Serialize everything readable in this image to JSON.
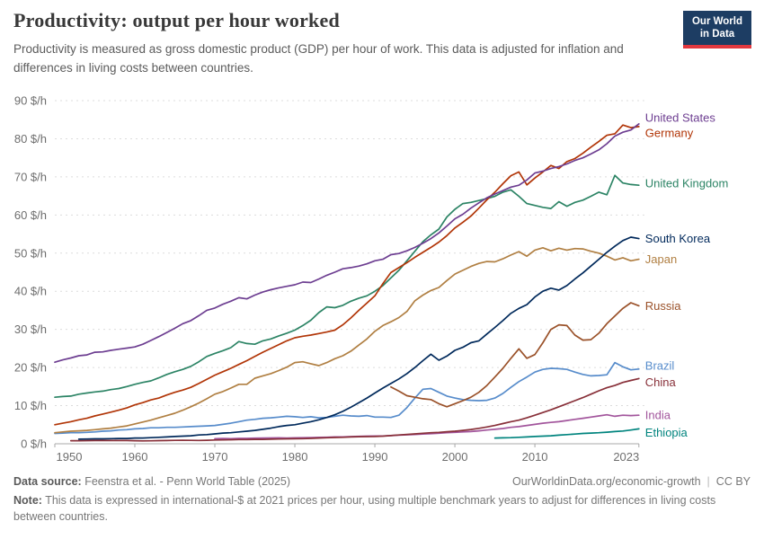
{
  "header": {
    "title": "Productivity: output per hour worked",
    "subtitle": "Productivity is measured as gross domestic product (GDP) per hour of work. This data is adjusted for inflation and differences in living costs between countries.",
    "logo": {
      "line1": "Our World",
      "line2": "in Data",
      "bg_color": "#1d3d63",
      "accent_color": "#e2383f"
    }
  },
  "footer": {
    "source_label": "Data source:",
    "source_text": "Feenstra et al. - Penn World Table (2025)",
    "link": "OurWorldinData.org/economic-growth",
    "separator": "|",
    "license": "CC BY",
    "note_label": "Note:",
    "note_text": "This data is expressed in international-$ at 2021 prices per hour, using multiple benchmark years to adjust for differences in living costs between countries."
  },
  "chart_data": {
    "type": "line",
    "title": "Productivity: output per hour worked",
    "unit": "$/h",
    "xlim": [
      1950,
      2023
    ],
    "ylim": [
      0,
      90
    ],
    "x_ticks": [
      1950,
      1960,
      1970,
      1980,
      1990,
      2000,
      2010,
      2023
    ],
    "y_ticks": [
      0,
      10,
      20,
      30,
      40,
      50,
      60,
      70,
      80,
      90
    ],
    "grid": "horizontal-dashed",
    "legend_position": "right-end-labels",
    "grid_color": "#dcdcdc",
    "axis_color": "#a8a8a8",
    "series": [
      {
        "name": "United States",
        "color": "#6D3E91",
        "start": 1950,
        "label_dy": -7,
        "values": [
          21.4,
          22.0,
          22.5,
          23.1,
          23.3,
          24.0,
          24.1,
          24.5,
          24.8,
          25.1,
          25.4,
          26.1,
          27.1,
          28.1,
          29.2,
          30.3,
          31.5,
          32.3,
          33.6,
          35.0,
          35.6,
          36.6,
          37.4,
          38.3,
          38.0,
          39.0,
          39.8,
          40.4,
          40.9,
          41.3,
          41.7,
          42.4,
          42.3,
          43.2,
          44.2,
          45.0,
          45.9,
          46.2,
          46.6,
          47.2,
          48.0,
          48.4,
          49.6,
          49.9,
          50.6,
          51.5,
          52.6,
          53.8,
          55.3,
          57.1,
          59.0,
          60.2,
          61.8,
          63.2,
          64.5,
          65.5,
          66.4,
          67.3,
          67.8,
          69.2,
          71.0,
          71.5,
          72.2,
          72.7,
          73.4,
          74.3,
          75.0,
          76.0,
          77.1,
          78.7,
          80.7,
          81.7,
          82.3,
          83.9
        ]
      },
      {
        "name": "Germany",
        "color": "#B13507",
        "start": 1950,
        "label_dy": 7,
        "values": [
          5.0,
          5.4,
          5.8,
          6.3,
          6.7,
          7.3,
          7.8,
          8.3,
          8.8,
          9.4,
          10.2,
          10.8,
          11.5,
          12.0,
          12.8,
          13.5,
          14.1,
          14.8,
          15.8,
          16.9,
          18.0,
          18.9,
          19.8,
          20.8,
          21.8,
          22.9,
          24.0,
          25.0,
          26.0,
          27.0,
          27.8,
          28.2,
          28.5,
          28.9,
          29.3,
          29.8,
          31.2,
          33.0,
          35.0,
          36.9,
          38.8,
          42.0,
          44.9,
          46.2,
          47.5,
          48.9,
          50.2,
          51.5,
          52.9,
          54.6,
          56.6,
          58.1,
          59.7,
          61.8,
          64.0,
          66.0,
          68.2,
          70.3,
          71.3,
          67.9,
          69.7,
          71.3,
          73.0,
          72.2,
          74.0,
          74.8,
          76.2,
          77.8,
          79.3,
          80.9,
          81.3,
          83.6,
          82.9,
          83.2
        ]
      },
      {
        "name": "United Kingdom",
        "color": "#2C8465",
        "start": 1950,
        "label_dy": -2,
        "values": [
          12.2,
          12.4,
          12.5,
          13.0,
          13.3,
          13.6,
          13.8,
          14.2,
          14.5,
          15.0,
          15.6,
          16.1,
          16.5,
          17.3,
          18.2,
          18.9,
          19.5,
          20.3,
          21.5,
          22.9,
          23.7,
          24.4,
          25.2,
          26.8,
          26.3,
          26.1,
          27.0,
          27.5,
          28.3,
          29.0,
          29.8,
          31.0,
          32.4,
          34.4,
          35.9,
          35.7,
          36.3,
          37.4,
          38.2,
          38.8,
          40.0,
          41.5,
          43.5,
          45.5,
          48.0,
          50.5,
          53.0,
          54.8,
          56.3,
          59.5,
          61.5,
          63.0,
          63.3,
          63.8,
          64.3,
          64.9,
          66.0,
          66.6,
          64.9,
          63.0,
          62.5,
          62.0,
          61.7,
          63.5,
          62.3,
          63.3,
          63.9,
          64.9,
          66.0,
          65.3,
          70.4,
          68.4,
          68.0,
          67.8
        ]
      },
      {
        "name": "South Korea",
        "color": "#00295B",
        "start": 1953,
        "label_dy": 0,
        "values": [
          1.2,
          1.25,
          1.3,
          1.3,
          1.35,
          1.4,
          1.4,
          1.5,
          1.5,
          1.6,
          1.7,
          1.8,
          1.9,
          2.0,
          2.1,
          2.3,
          2.4,
          2.6,
          2.8,
          2.9,
          3.1,
          3.3,
          3.5,
          3.8,
          4.1,
          4.5,
          4.8,
          5.0,
          5.4,
          5.8,
          6.3,
          6.9,
          7.6,
          8.5,
          9.6,
          10.8,
          12.0,
          13.3,
          14.6,
          15.8,
          17.0,
          18.4,
          20.0,
          21.8,
          23.5,
          21.9,
          23.0,
          24.5,
          25.3,
          26.5,
          27.0,
          28.8,
          30.5,
          32.3,
          34.2,
          35.5,
          36.5,
          38.5,
          40.0,
          40.8,
          40.3,
          41.5,
          43.2,
          44.8,
          46.6,
          48.4,
          50.2,
          51.8,
          53.3,
          54.2,
          53.8
        ]
      },
      {
        "name": "Japan",
        "color": "#B07F42",
        "start": 1950,
        "label_dy": 0,
        "values": [
          2.9,
          3.1,
          3.3,
          3.4,
          3.5,
          3.7,
          3.9,
          4.1,
          4.4,
          4.7,
          5.2,
          5.7,
          6.2,
          6.8,
          7.4,
          8.0,
          8.8,
          9.7,
          10.7,
          11.8,
          13.0,
          13.7,
          14.6,
          15.6,
          15.6,
          17.2,
          17.8,
          18.4,
          19.2,
          20.1,
          21.3,
          21.5,
          21.0,
          20.5,
          21.3,
          22.3,
          23.1,
          24.3,
          25.9,
          27.5,
          29.5,
          31.0,
          32.0,
          33.1,
          34.7,
          37.5,
          39.0,
          40.2,
          41.0,
          42.8,
          44.5,
          45.5,
          46.5,
          47.3,
          47.8,
          47.7,
          48.5,
          49.5,
          50.4,
          49.2,
          50.8,
          51.4,
          50.6,
          51.3,
          50.8,
          51.2,
          51.1,
          50.5,
          50.0,
          49.2,
          48.2,
          48.8,
          48.0,
          48.4
        ]
      },
      {
        "name": "Russia",
        "color": "#9A5129",
        "start": 1992,
        "label_dy": 0,
        "values": [
          14.9,
          13.8,
          12.6,
          12.2,
          11.8,
          11.6,
          10.5,
          9.7,
          10.5,
          11.3,
          12.2,
          13.5,
          15.3,
          17.5,
          19.8,
          22.4,
          24.9,
          22.4,
          23.4,
          26.5,
          30.0,
          31.2,
          31.0,
          28.5,
          27.2,
          27.3,
          29.0,
          31.5,
          33.5,
          35.5,
          37.0,
          36.2
        ]
      },
      {
        "name": "Brazil",
        "color": "#578CCB",
        "start": 1950,
        "label_dy": -4,
        "values": [
          2.7,
          2.8,
          2.9,
          2.9,
          3.0,
          3.1,
          3.3,
          3.4,
          3.6,
          3.7,
          3.9,
          4.0,
          4.2,
          4.2,
          4.3,
          4.3,
          4.4,
          4.5,
          4.6,
          4.7,
          4.8,
          5.1,
          5.4,
          5.8,
          6.2,
          6.4,
          6.7,
          6.8,
          7.0,
          7.2,
          7.1,
          6.9,
          7.1,
          6.8,
          6.9,
          7.2,
          7.5,
          7.3,
          7.2,
          7.4,
          7.0,
          7.0,
          6.9,
          7.5,
          9.5,
          12.0,
          14.3,
          14.5,
          13.5,
          12.5,
          12.0,
          11.6,
          11.4,
          11.3,
          11.4,
          12.0,
          13.2,
          14.8,
          16.3,
          17.5,
          18.8,
          19.5,
          19.8,
          19.7,
          19.5,
          18.8,
          18.2,
          17.8,
          17.9,
          18.1,
          21.3,
          20.2,
          19.4,
          19.6
        ]
      },
      {
        "name": "China",
        "color": "#883039",
        "start": 1952,
        "label_dy": 4,
        "values": [
          0.8,
          0.8,
          0.82,
          0.85,
          0.87,
          0.85,
          0.88,
          0.85,
          0.8,
          0.75,
          0.78,
          0.82,
          0.85,
          0.9,
          0.92,
          0.9,
          0.88,
          0.92,
          1.0,
          1.02,
          1.05,
          1.1,
          1.1,
          1.15,
          1.12,
          1.2,
          1.25,
          1.3,
          1.32,
          1.35,
          1.42,
          1.5,
          1.58,
          1.65,
          1.7,
          1.78,
          1.85,
          1.88,
          1.92,
          2.0,
          2.15,
          2.3,
          2.45,
          2.6,
          2.75,
          2.9,
          3.0,
          3.15,
          3.3,
          3.5,
          3.75,
          4.05,
          4.4,
          4.8,
          5.3,
          5.8,
          6.2,
          6.8,
          7.5,
          8.2,
          8.9,
          9.7,
          10.5,
          11.3,
          12.1,
          13.0,
          13.9,
          14.7,
          15.3,
          16.1,
          16.6,
          17.1
        ]
      },
      {
        "name": "India",
        "color": "#A2559C",
        "start": 1970,
        "label_dy": 0,
        "values": [
          1.35,
          1.38,
          1.35,
          1.42,
          1.42,
          1.48,
          1.5,
          1.52,
          1.55,
          1.5,
          1.55,
          1.6,
          1.62,
          1.68,
          1.72,
          1.78,
          1.82,
          1.88,
          1.95,
          2.0,
          2.05,
          2.05,
          2.15,
          2.25,
          2.35,
          2.45,
          2.55,
          2.65,
          2.75,
          2.9,
          3.0,
          3.1,
          3.2,
          3.4,
          3.6,
          3.8,
          4.0,
          4.3,
          4.5,
          4.8,
          5.1,
          5.4,
          5.6,
          5.8,
          6.1,
          6.4,
          6.7,
          7.0,
          7.3,
          7.6,
          7.2,
          7.5,
          7.4,
          7.5
        ]
      },
      {
        "name": "Ethiopia",
        "color": "#00847E",
        "start": 2005,
        "label_dy": 4,
        "values": [
          1.5,
          1.55,
          1.6,
          1.7,
          1.8,
          1.9,
          2.0,
          2.1,
          2.25,
          2.4,
          2.55,
          2.7,
          2.8,
          2.9,
          3.05,
          3.2,
          3.35,
          3.6,
          3.9
        ]
      }
    ]
  }
}
